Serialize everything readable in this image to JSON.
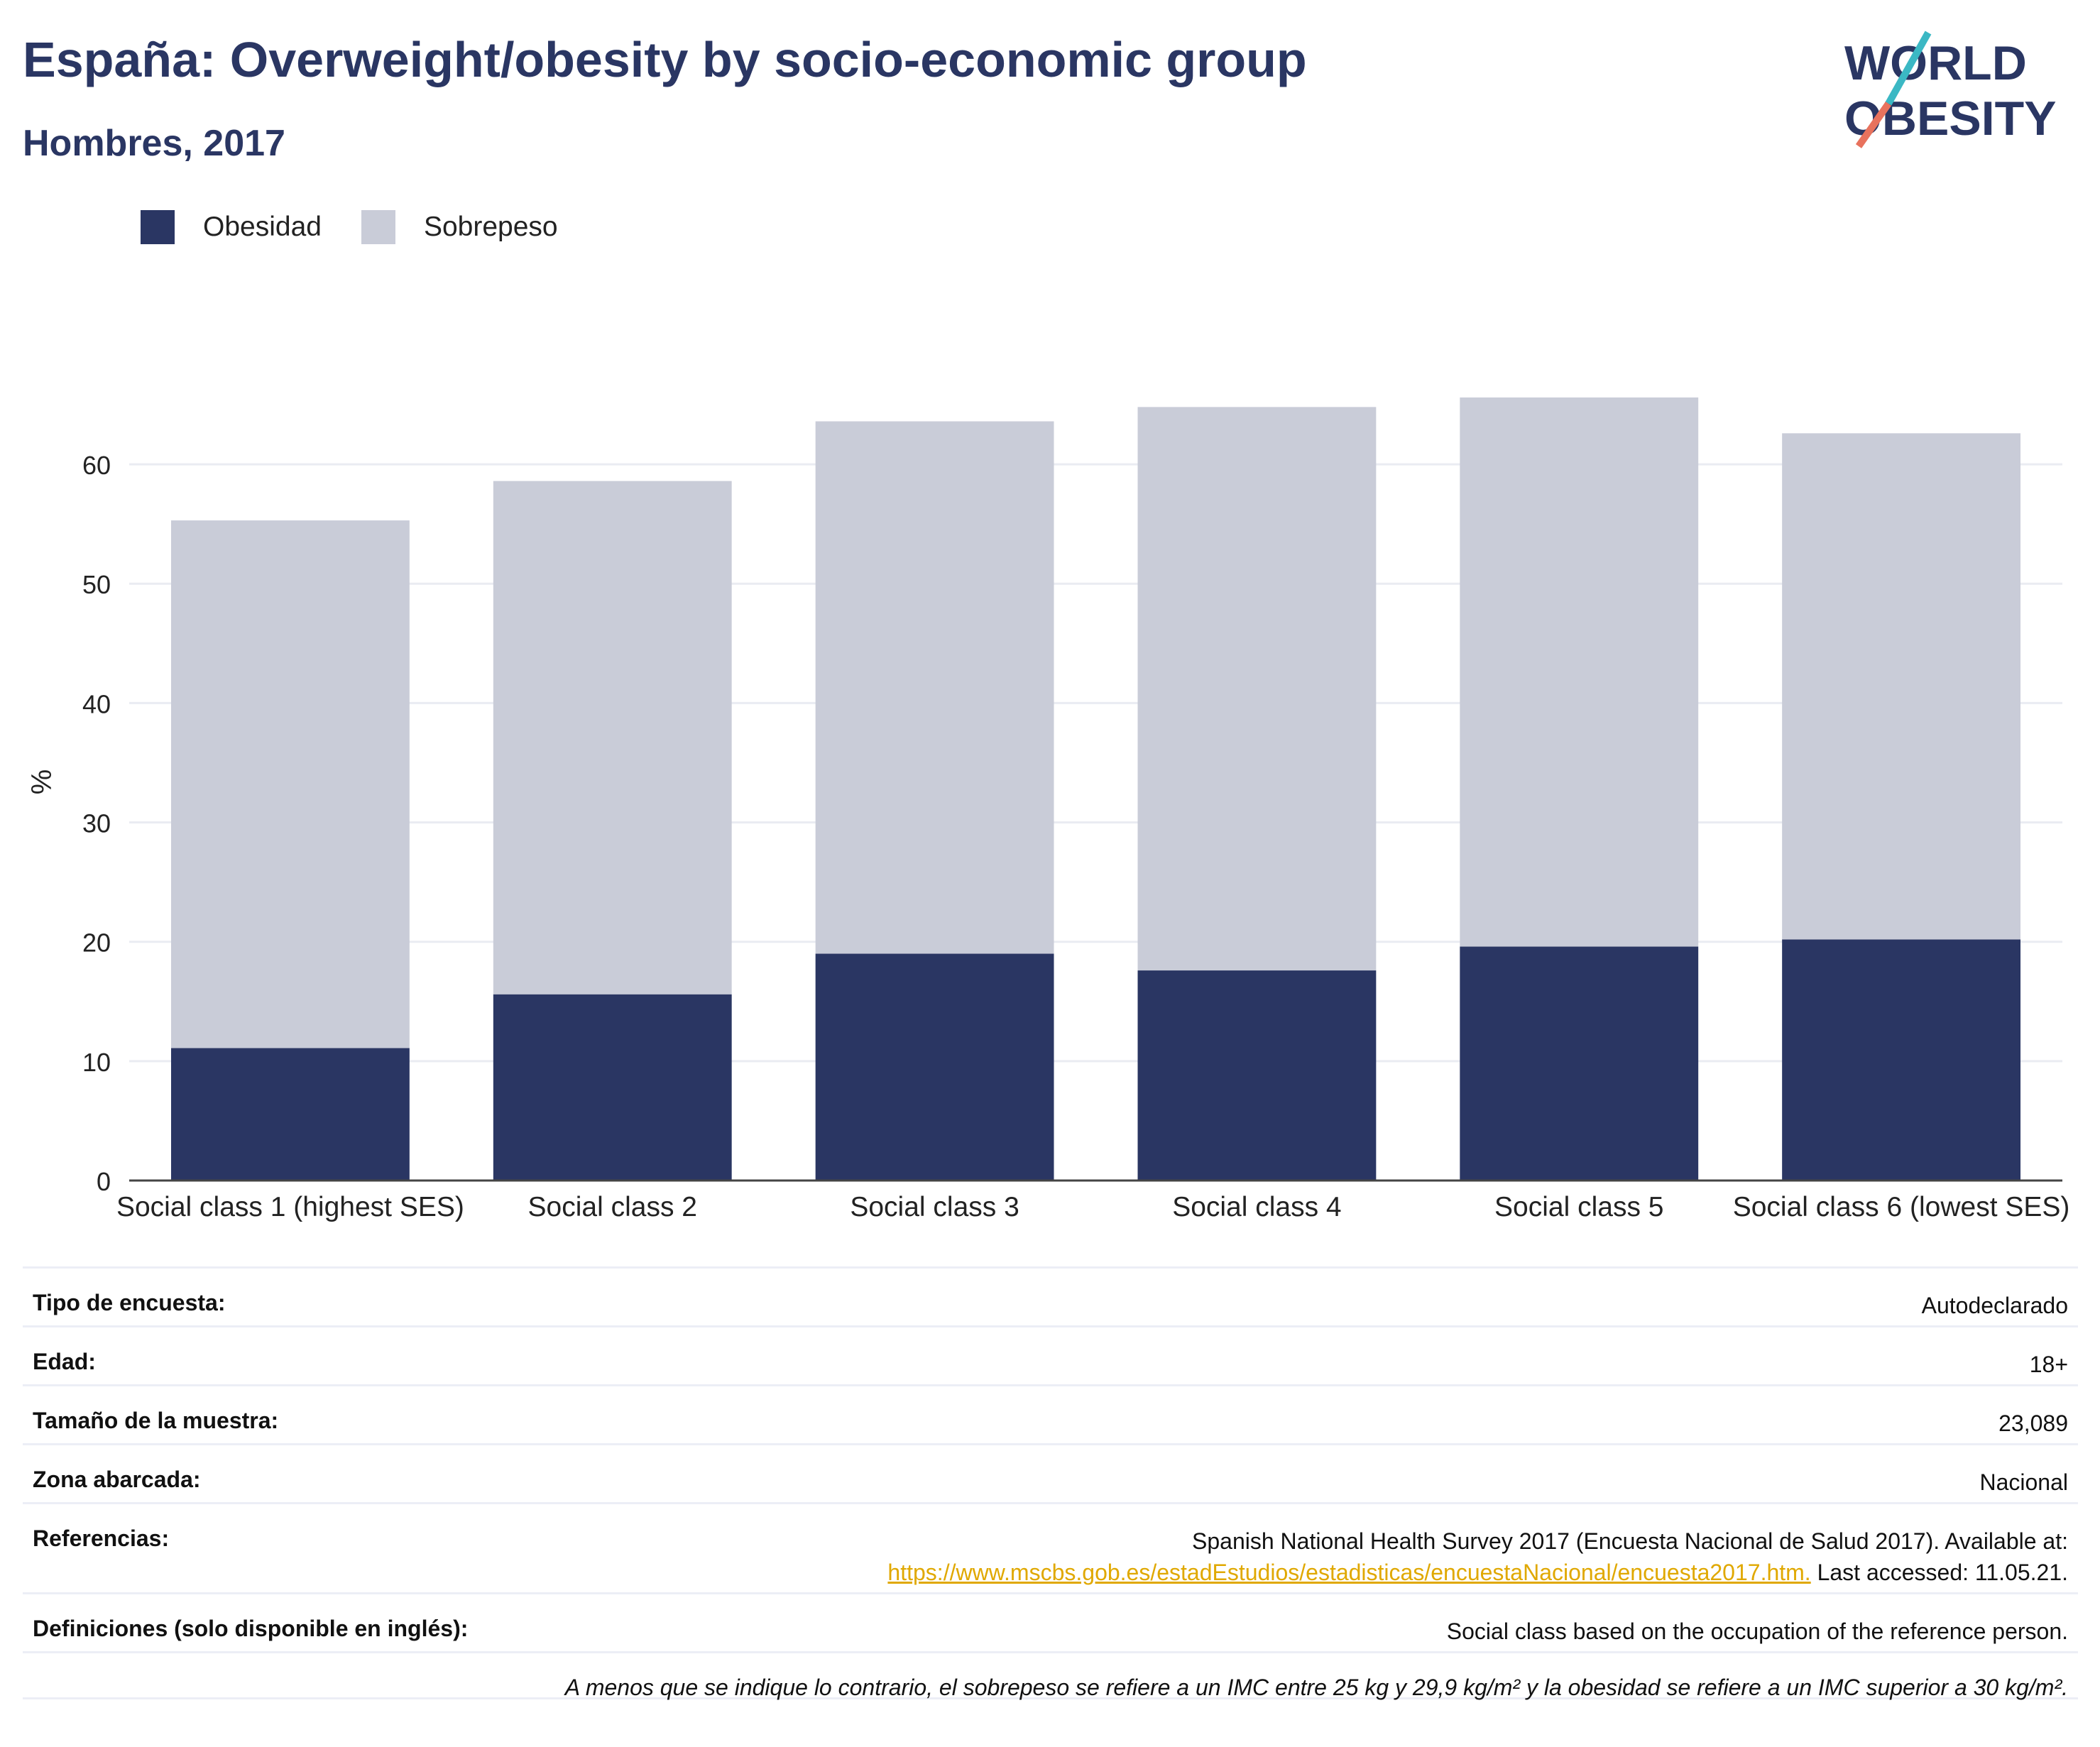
{
  "header": {
    "title": "España: Overweight/obesity by socio-economic group",
    "subtitle": "Hombres, 2017"
  },
  "logo": {
    "line1": "WORLD",
    "line2": "OBESITY"
  },
  "legend": [
    {
      "label": "Obesidad",
      "color": "#2a3663"
    },
    {
      "label": "Sobrepeso",
      "color": "#c9ccd8"
    }
  ],
  "chart_data": {
    "type": "bar",
    "stacked": true,
    "categories": [
      "Social class 1 (highest SES)",
      "Social class 2",
      "Social class 3",
      "Social class 4",
      "Social class 5",
      "Social class 6 (lowest SES)"
    ],
    "series": [
      {
        "name": "Obesidad",
        "values": [
          11.1,
          15.6,
          19.0,
          17.6,
          19.6,
          20.2
        ],
        "color": "#2a3663"
      },
      {
        "name": "Sobrepeso",
        "values": [
          44.2,
          43.0,
          44.6,
          47.2,
          46.0,
          42.4
        ],
        "color": "#c9ccd8"
      }
    ],
    "ylabel": "%",
    "yticks": [
      0,
      10,
      20,
      30,
      40,
      50,
      60
    ],
    "ylim": [
      0,
      70
    ],
    "grid": true,
    "legend_position": "top-left"
  },
  "info": {
    "rows": [
      {
        "key": "Tipo de encuesta:",
        "value": "Autodeclarado"
      },
      {
        "key": "Edad:",
        "value": "18+"
      },
      {
        "key": "Tamaño de la muestra:",
        "value": "23,089"
      },
      {
        "key": "Zona abarcada:",
        "value": "Nacional"
      }
    ],
    "references": {
      "key": "Referencias:",
      "line1": "Spanish National Health Survey 2017 (Encuesta Nacional de Salud 2017). Available at:",
      "link": "https://www.mscbs.gob.es/estadEstudios/estadisticas/encuestaNacional/encuesta2017.htm.",
      "suffix": " Last accessed: 11.05.21."
    },
    "definitions": {
      "key": "Definiciones (solo disponible en inglés):",
      "value": "Social class based on the occupation of the reference person."
    },
    "footnote": "A menos que se indique lo contrario, el sobrepeso se refiere a un IMC entre 25 kg y 29,9 kg/m² y la obesidad se refiere a un IMC superior a 30 kg/m²."
  }
}
